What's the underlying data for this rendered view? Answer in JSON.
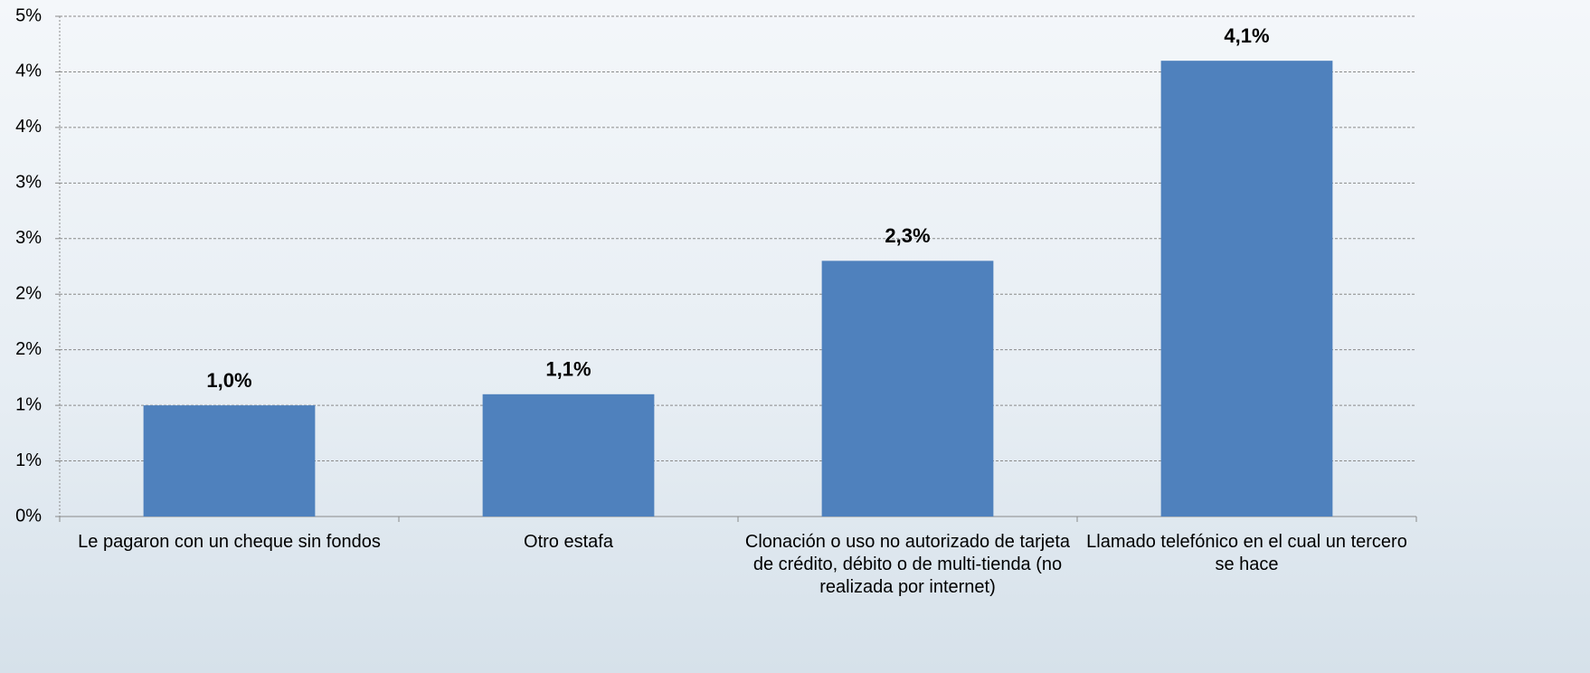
{
  "chart_data": {
    "type": "bar",
    "categories": [
      "Le pagaron con un cheque sin fondos",
      "Otro estafa",
      "Clonación o uso no autorizado de tarjeta de crédito, débito o de multi-tienda (no realizada por internet)",
      "Llamado telefónico en el cual un tercero se hace"
    ],
    "values": [
      1.0,
      1.1,
      2.3,
      4.1
    ],
    "value_labels": [
      "1,0%",
      "1,1%",
      "2,3%",
      "4,1%"
    ],
    "color": "#4f81bd",
    "ylim": [
      0,
      4.5
    ],
    "yticks": [
      {
        "value": 0,
        "label": "0%"
      },
      {
        "value": 0.5,
        "label": "1%"
      },
      {
        "value": 1.0,
        "label": "1%"
      },
      {
        "value": 1.5,
        "label": "2%"
      },
      {
        "value": 2.0,
        "label": "2%"
      },
      {
        "value": 2.5,
        "label": "3%"
      },
      {
        "value": 3.0,
        "label": "3%"
      },
      {
        "value": 3.5,
        "label": "4%"
      },
      {
        "value": 4.0,
        "label": "4%"
      },
      {
        "value": 4.5,
        "label": "5%"
      }
    ],
    "grid": true
  }
}
